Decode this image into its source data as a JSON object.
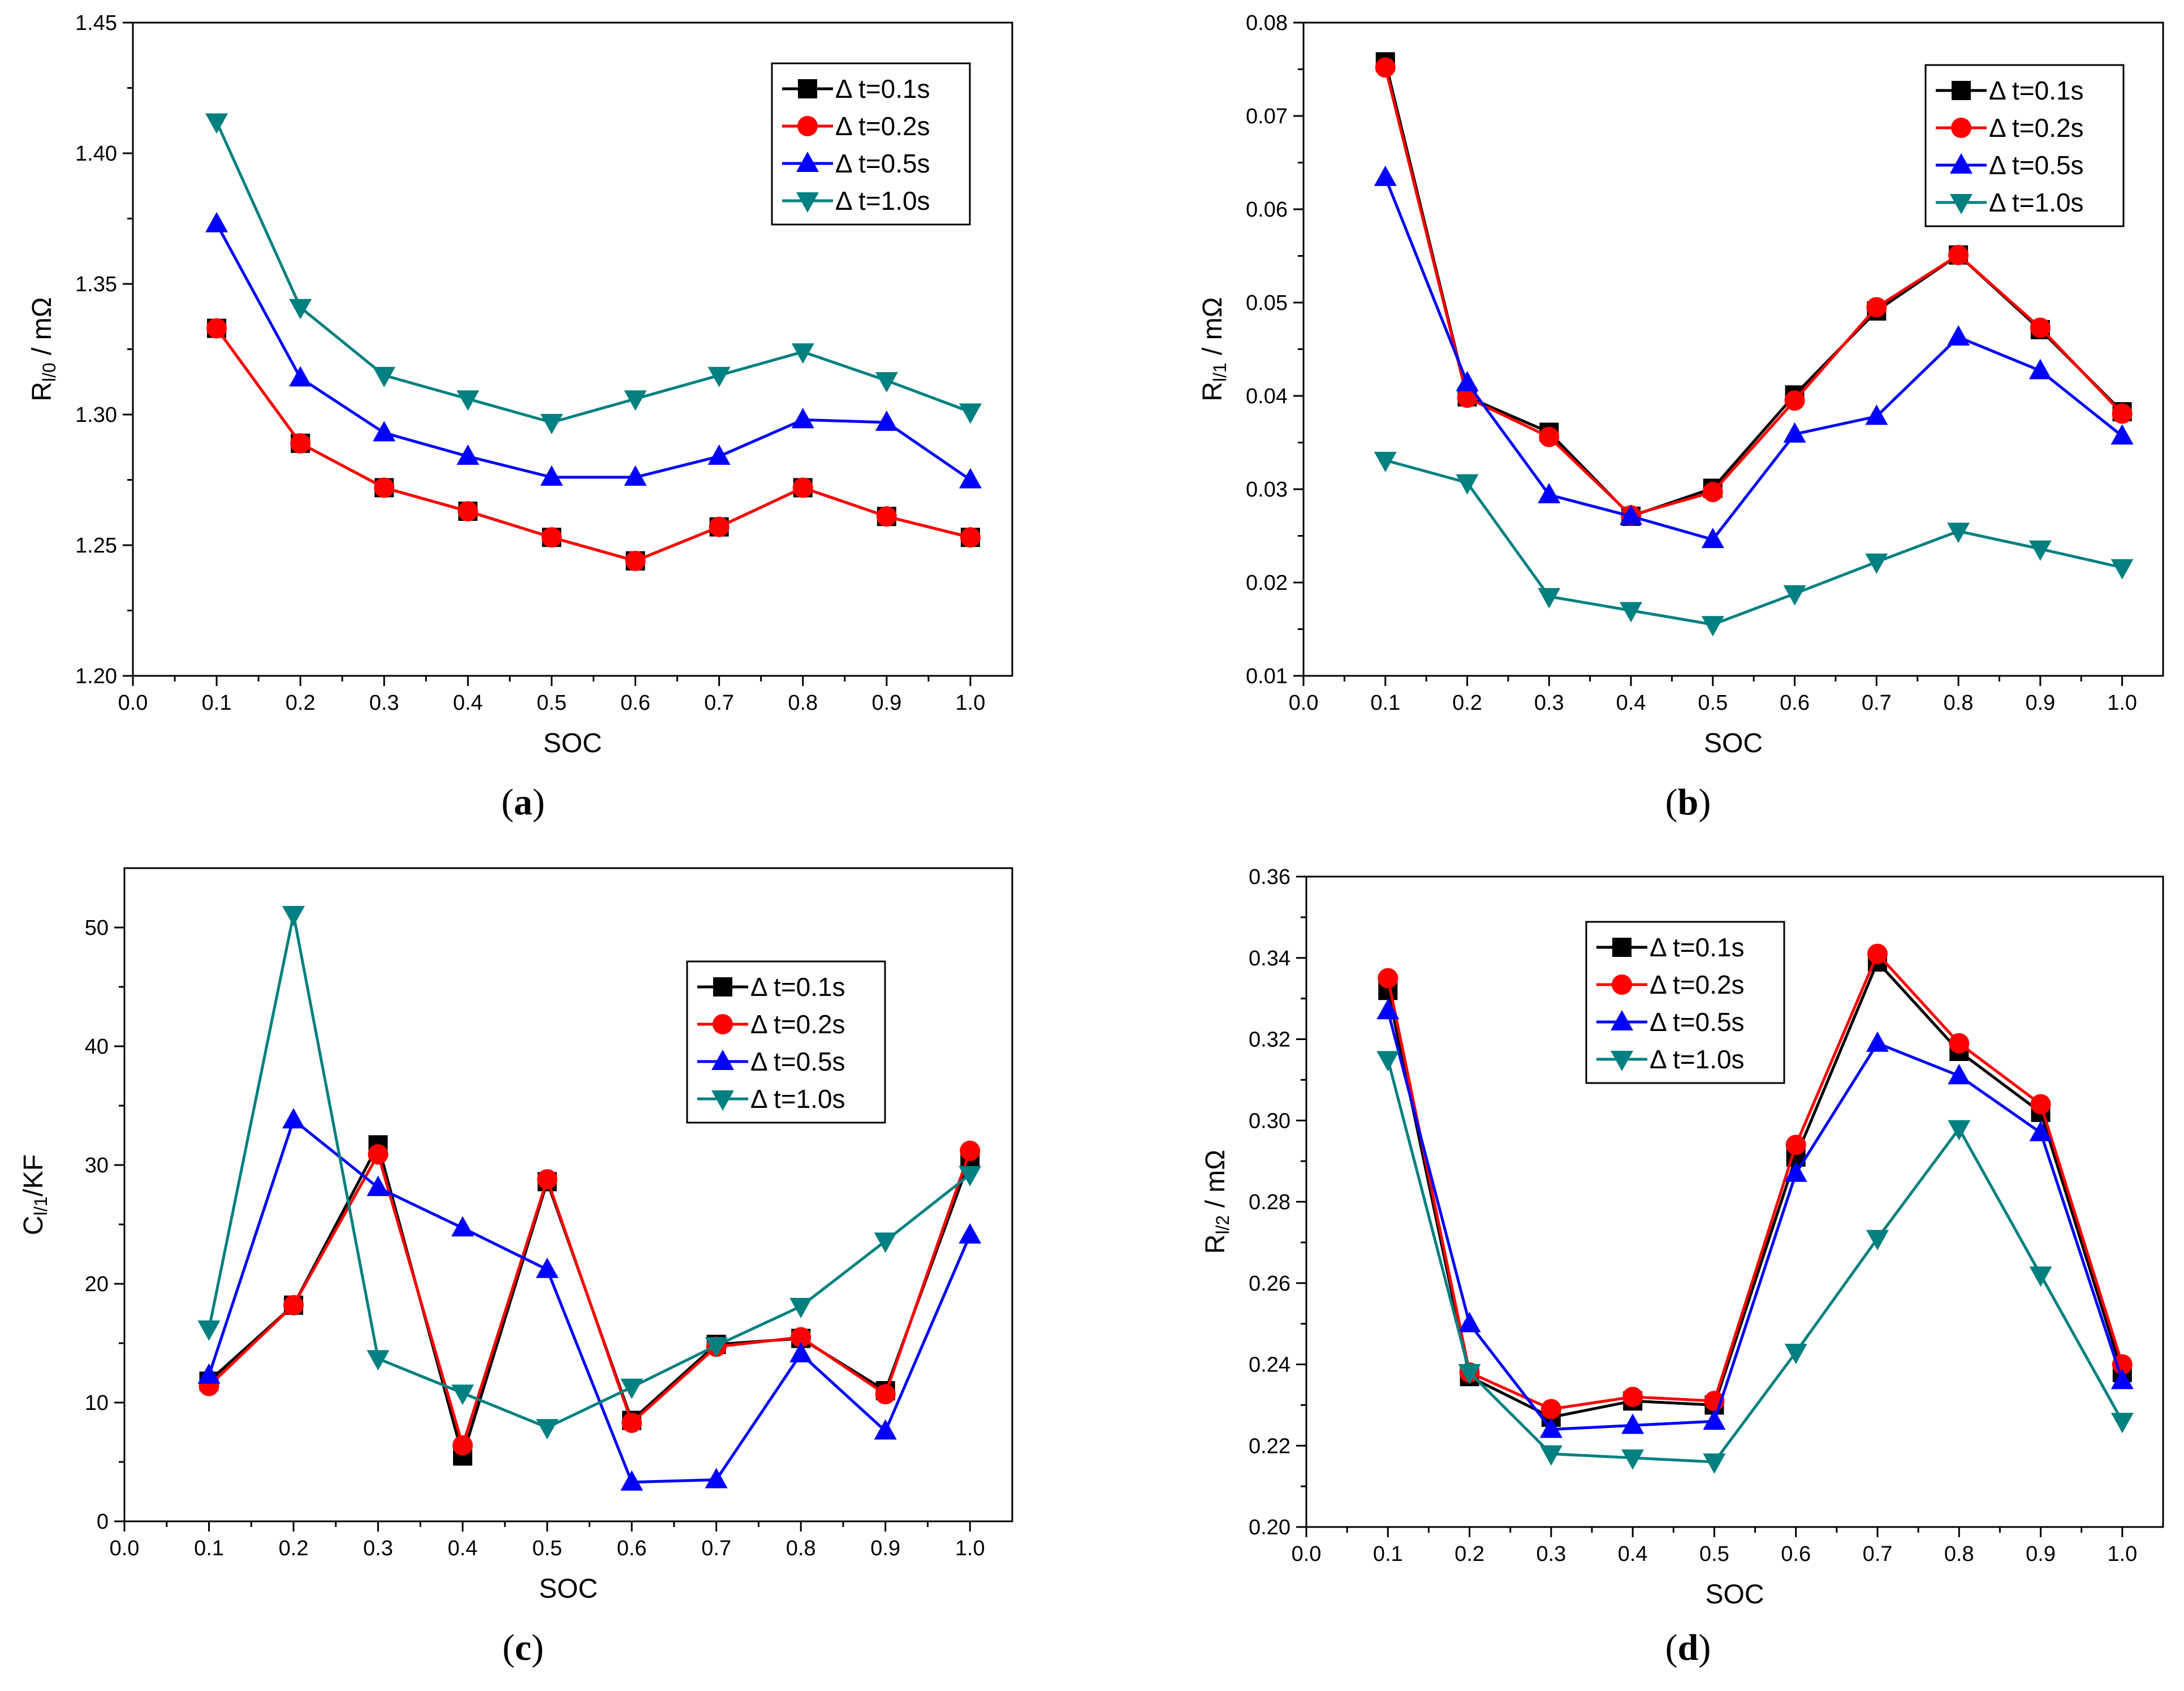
{
  "legend_prefix": "Δ",
  "chart_data": [
    {
      "id": "a",
      "type": "line",
      "caption": "a",
      "xlabel": "SOC",
      "ylabel": "R",
      "ylabel_sub": "l/0",
      "ylabel_suffix": " / mΩ",
      "xlim": [
        0.0,
        1.05
      ],
      "ylim": [
        1.2,
        1.45
      ],
      "xticks": [
        0.0,
        0.1,
        0.2,
        0.3,
        0.4,
        0.5,
        0.6,
        0.7,
        0.8,
        0.9,
        1.0
      ],
      "yticks": [
        1.2,
        1.25,
        1.3,
        1.35,
        1.4,
        1.45
      ],
      "xtick_labels": [
        "0.0",
        "0.1",
        "0.2",
        "0.3",
        "0.4",
        "0.5",
        "0.6",
        "0.7",
        "0.8",
        "0.9",
        "1.0"
      ],
      "ytick_labels": [
        "1.20",
        "1.25",
        "1.30",
        "1.35",
        "1.40",
        "1.45"
      ],
      "legend_position": "top-right",
      "x": [
        0.1,
        0.2,
        0.3,
        0.4,
        0.5,
        0.6,
        0.7,
        0.8,
        0.9,
        1.0
      ],
      "series": [
        {
          "name": "t=0.1s",
          "color": "#000000",
          "marker": "square",
          "values": [
            1.333,
            1.289,
            1.272,
            1.263,
            1.253,
            1.244,
            1.257,
            1.272,
            1.261,
            1.253
          ]
        },
        {
          "name": "t=0.2s",
          "color": "#ff0000",
          "marker": "circle",
          "values": [
            1.333,
            1.289,
            1.272,
            1.263,
            1.253,
            1.244,
            1.257,
            1.272,
            1.261,
            1.253
          ]
        },
        {
          "name": "t=0.5s",
          "color": "#0000ff",
          "marker": "triangle-up",
          "values": [
            1.373,
            1.314,
            1.293,
            1.284,
            1.276,
            1.276,
            1.284,
            1.298,
            1.297,
            1.275
          ]
        },
        {
          "name": "t=1.0s",
          "color": "#008080",
          "marker": "triangle-down",
          "values": [
            1.412,
            1.341,
            1.315,
            1.306,
            1.297,
            1.306,
            1.315,
            1.324,
            1.313,
            1.301
          ]
        }
      ]
    },
    {
      "id": "b",
      "type": "line",
      "caption": "b",
      "xlabel": "SOC",
      "ylabel": "R",
      "ylabel_sub": "l/1",
      "ylabel_suffix": " / mΩ",
      "xlim": [
        0.0,
        1.05
      ],
      "ylim": [
        0.01,
        0.08
      ],
      "xticks": [
        0.0,
        0.1,
        0.2,
        0.3,
        0.4,
        0.5,
        0.6,
        0.7,
        0.8,
        0.9,
        1.0
      ],
      "yticks": [
        0.01,
        0.02,
        0.03,
        0.04,
        0.05,
        0.06,
        0.07,
        0.08
      ],
      "xtick_labels": [
        "0.0",
        "0.1",
        "0.2",
        "0.3",
        "0.4",
        "0.5",
        "0.6",
        "0.7",
        "0.8",
        "0.9",
        "1.0"
      ],
      "ytick_labels": [
        "0.01",
        "0.02",
        "0.03",
        "0.04",
        "0.05",
        "0.06",
        "0.07",
        "0.08"
      ],
      "legend_position": "top-right",
      "x": [
        0.1,
        0.2,
        0.3,
        0.4,
        0.5,
        0.6,
        0.7,
        0.8,
        0.9,
        1.0
      ],
      "series": [
        {
          "name": "t=0.1s",
          "color": "#000000",
          "marker": "square",
          "values": [
            0.0758,
            0.0399,
            0.0361,
            0.0271,
            0.0301,
            0.0401,
            0.0491,
            0.0551,
            0.0471,
            0.0383
          ]
        },
        {
          "name": "t=0.2s",
          "color": "#ff0000",
          "marker": "circle",
          "values": [
            0.0752,
            0.0398,
            0.0356,
            0.0272,
            0.0297,
            0.0395,
            0.0495,
            0.0551,
            0.0473,
            0.0381
          ]
        },
        {
          "name": "t=0.5s",
          "color": "#0000ff",
          "marker": "triangle-up",
          "values": [
            0.0634,
            0.0414,
            0.0294,
            0.0271,
            0.0246,
            0.0359,
            0.0378,
            0.0463,
            0.0427,
            0.0357
          ]
        },
        {
          "name": "t=1.0s",
          "color": "#008080",
          "marker": "triangle-down",
          "values": [
            0.0331,
            0.0307,
            0.0185,
            0.017,
            0.0155,
            0.0188,
            0.0222,
            0.0255,
            0.0236,
            0.0216
          ]
        }
      ]
    },
    {
      "id": "c",
      "type": "line",
      "caption": "c",
      "xlabel": "SOC",
      "ylabel": "C",
      "ylabel_sub": "l/1",
      "ylabel_suffix": "/KF",
      "xlim": [
        0.0,
        1.05
      ],
      "ylim": [
        0,
        55
      ],
      "xticks": [
        0.0,
        0.1,
        0.2,
        0.3,
        0.4,
        0.5,
        0.6,
        0.7,
        0.8,
        0.9,
        1.0
      ],
      "yticks": [
        0,
        10,
        20,
        30,
        40,
        50
      ],
      "xtick_labels": [
        "0.0",
        "0.1",
        "0.2",
        "0.3",
        "0.4",
        "0.5",
        "0.6",
        "0.7",
        "0.8",
        "0.9",
        "1.0"
      ],
      "ytick_labels": [
        "0",
        "10",
        "20",
        "30",
        "40",
        "50"
      ],
      "legend_position": "center-right",
      "x": [
        0.1,
        0.2,
        0.3,
        0.4,
        0.5,
        0.6,
        0.7,
        0.8,
        0.9,
        1.0
      ],
      "series": [
        {
          "name": "t=0.1s",
          "color": "#000000",
          "marker": "square",
          "values": [
            11.8,
            18.2,
            31.7,
            5.5,
            28.6,
            8.5,
            14.9,
            15.4,
            11.0,
            30.5
          ]
        },
        {
          "name": "t=0.2s",
          "color": "#ff0000",
          "marker": "circle",
          "values": [
            11.4,
            18.2,
            30.9,
            6.4,
            28.8,
            8.3,
            14.7,
            15.5,
            10.7,
            31.2
          ]
        },
        {
          "name": "t=0.5s",
          "color": "#0000ff",
          "marker": "triangle-up",
          "values": [
            12.3,
            33.8,
            28.1,
            24.7,
            21.2,
            3.3,
            3.5,
            14.1,
            7.6,
            24.1
          ]
        },
        {
          "name": "t=1.0s",
          "color": "#008080",
          "marker": "triangle-down",
          "values": [
            16.2,
            51.1,
            13.7,
            10.8,
            7.9,
            11.3,
            14.8,
            18.1,
            23.6,
            29.2
          ]
        }
      ]
    },
    {
      "id": "d",
      "type": "line",
      "caption": "d",
      "xlabel": "SOC",
      "ylabel": "R",
      "ylabel_sub": "l/2",
      "ylabel_suffix": " / mΩ",
      "xlim": [
        0.0,
        1.05
      ],
      "ylim": [
        0.2,
        0.36
      ],
      "xticks": [
        0.0,
        0.1,
        0.2,
        0.3,
        0.4,
        0.5,
        0.6,
        0.7,
        0.8,
        0.9,
        1.0
      ],
      "yticks": [
        0.2,
        0.22,
        0.24,
        0.26,
        0.28,
        0.3,
        0.32,
        0.34,
        0.36
      ],
      "xtick_labels": [
        "0.0",
        "0.1",
        "0.2",
        "0.3",
        "0.4",
        "0.5",
        "0.6",
        "0.7",
        "0.8",
        "0.9",
        "1.0"
      ],
      "ytick_labels": [
        "0.20",
        "0.22",
        "0.24",
        "0.26",
        "0.28",
        "0.30",
        "0.32",
        "0.34",
        "0.36"
      ],
      "legend_position": "top-center",
      "x": [
        0.1,
        0.2,
        0.3,
        0.4,
        0.5,
        0.6,
        0.7,
        0.8,
        0.9,
        1.0
      ],
      "series": [
        {
          "name": "t=0.1s",
          "color": "#000000",
          "marker": "square",
          "values": [
            0.332,
            0.237,
            0.227,
            0.231,
            0.23,
            0.291,
            0.339,
            0.317,
            0.302,
            0.238
          ]
        },
        {
          "name": "t=0.2s",
          "color": "#ff0000",
          "marker": "circle",
          "values": [
            0.335,
            0.238,
            0.229,
            0.232,
            0.231,
            0.294,
            0.341,
            0.319,
            0.304,
            0.24
          ]
        },
        {
          "name": "t=0.5s",
          "color": "#0000ff",
          "marker": "triangle-up",
          "values": [
            0.327,
            0.25,
            0.224,
            0.225,
            0.226,
            0.287,
            0.319,
            0.311,
            0.297,
            0.236
          ]
        },
        {
          "name": "t=1.0s",
          "color": "#008080",
          "marker": "triangle-down",
          "values": [
            0.315,
            0.238,
            0.218,
            0.217,
            0.216,
            0.243,
            0.271,
            0.298,
            0.262,
            0.226
          ]
        }
      ]
    }
  ]
}
